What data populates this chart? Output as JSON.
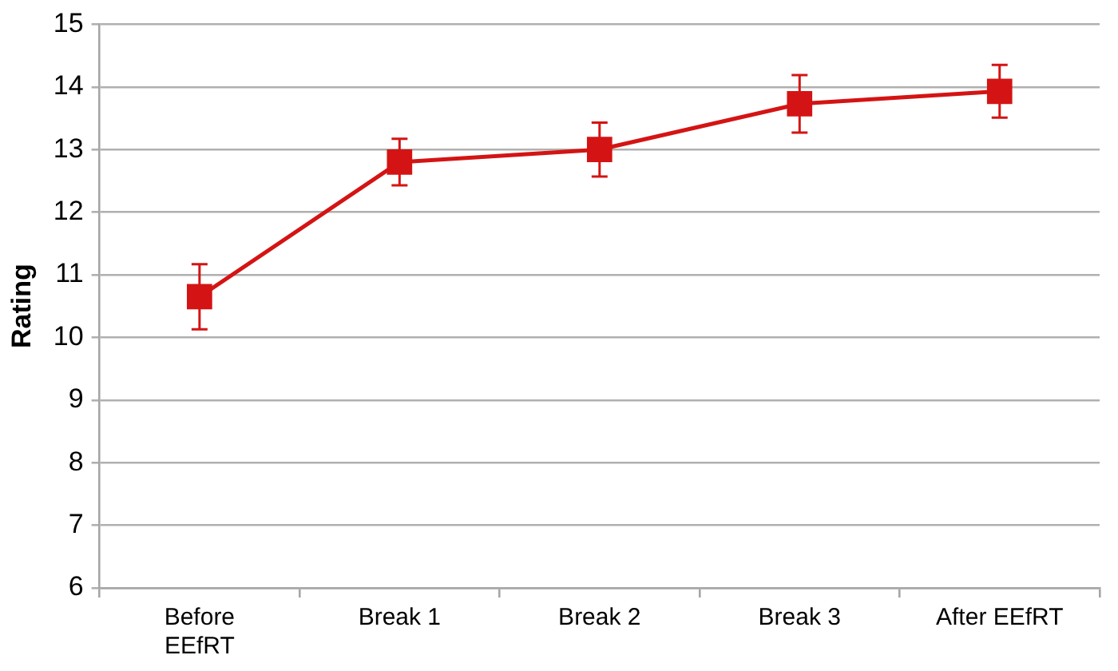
{
  "chart_data": {
    "type": "line",
    "ylabel": "Rating",
    "categories": [
      "Before\nEEfRT",
      "Break 1",
      "Break 2",
      "Break 3",
      "After EEfRT"
    ],
    "values": [
      10.65,
      12.8,
      13.0,
      13.73,
      13.93
    ],
    "errors": [
      0.52,
      0.37,
      0.43,
      0.46,
      0.42
    ],
    "color": "#d41414",
    "ylim": [
      6,
      15
    ],
    "yticks": [
      6,
      7,
      8,
      9,
      10,
      11,
      12,
      13,
      14,
      15
    ],
    "grid": "y",
    "marker": "square",
    "line_style": "solid"
  }
}
